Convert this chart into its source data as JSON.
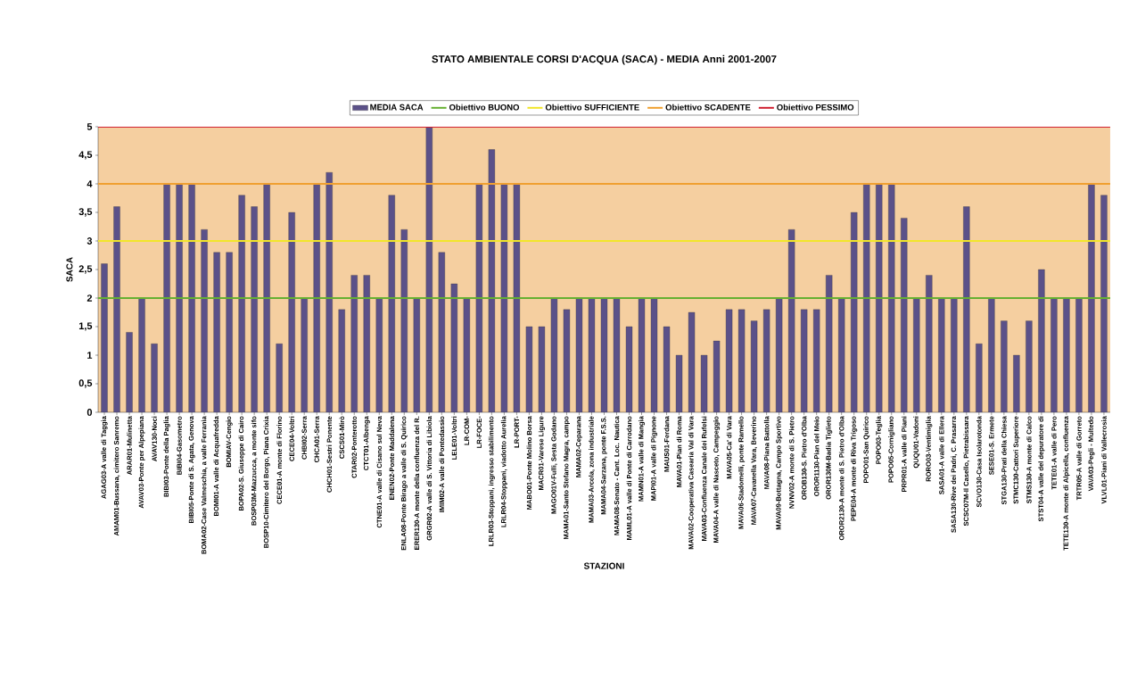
{
  "chart_data": {
    "type": "bar",
    "title": "STATO AMBIENTALE CORSI D'ACQUA (SACA) - MEDIA Anni 2001-2007",
    "xlabel": "STAZIONI",
    "ylabel": "SACA",
    "categories": [
      "AGAG03-A valle di Taggia",
      "AMAM01-Bussana, cimitero Sanremo",
      "ARAR01-Mulinetta",
      "AVAV03-Ponte per Alpepiana",
      "AVAV130-Noci",
      "BIBI03-Ponte della Paglia",
      "BIBI04-Gasometro",
      "BIBI05-Ponte di S. Agata, Genova",
      "BOMA02-Case Valmeschia, a valle Ferrania",
      "BOMI01-A valle di Acquafredda",
      "BOMIAV-Cengio",
      "BOPA02-S. Giuseppe di Cairo",
      "BOSP03M-Mazzucca, a monte sifo",
      "BOSP10-Cimitero del Borgo, Piana Crixia",
      "CECE01-A monte di Florino",
      "CECE04-Voltri",
      "CHBI02-Serra",
      "CHCA01-Serra",
      "CHCH01-Sestri Ponente",
      "CSCS01-Mirò",
      "CTAR02-Ponterotto",
      "CTCT01-Albenga",
      "CTNE01-A valle di Cisano sul Neva",
      "ENEN02-Ponte Maddalena",
      "ENLA08-Ponte Birago a valle di S. Quirico",
      "ERER130-A monte della confluenza del R.",
      "GRGR02-A valle di S. Vittoria di Libiola",
      "IMIM02-A valle di Pontedassio",
      "LELE01-Voltri",
      "LR-COM-",
      "LR-FOCE-",
      "LRLR03-Stoppani, ingresso stabilimento",
      "LRLR04-Stoppani, viadotto Aurelia",
      "LR-PORT-",
      "MABO01-Ponte Molino Borsa",
      "MACR01-Varese Ligure",
      "MAGO01V-Fulli, Sesta Godano",
      "MAMA01-Santo Stefano Magra, campo",
      "MAMA02-Ceparana",
      "MAMA03-Arcola, zona industriale",
      "MAMA04-Sarzana, ponte F.S.S.",
      "MAMA08-Senato - Cant. Loc. Nautica",
      "MAML01-A valle di Ponte di Carrodano",
      "MAMN01-A valle di Mangia",
      "MAPI01-A valle di Pignone",
      "MAUS01-Ferdana",
      "MAVA01-Pian di Roma",
      "MAVA02-Cooperativa Casearia Val di Vara",
      "MAVA03-Confluenza Canale dei Rufelsi",
      "MAVA04-A valle di Nasceto, Campeggio",
      "MAVA05-Ca' di Vara",
      "MAVA06-Stadomelli, ponte Ramello",
      "MAVA07-Cavanella Vara, Beverino",
      "MAVA08-Piana Battolla",
      "MAVA09-Bottagna, Campo Sportivo",
      "NVNV02-A monte di S. Pietro",
      "OROB130-S. Pietro d'Olba",
      "OROR1130-Pian del Meio",
      "OROR130M-Badia Tiglieto",
      "OROR2130-A monte di S. Pietro d'Olba",
      "PEPE04-A monte di Riva Trigoso",
      "POPO01-San Quirico",
      "POPO03-Teglia",
      "POPO05-Cornigliano",
      "PRPR01-A valle di Piani",
      "QUQU01-Vadoni",
      "RORO03-Ventimiglia",
      "SASA01-A valle di Ellera",
      "SASA130-Rive dei Padri, C. Prasarra",
      "SCSC07M-Il Casello, Pietrabissara",
      "SCVO130-Casa Isolarotonda",
      "SESE01-S. Ermete",
      "STGA130-Prati della Chiesa",
      "STMC130-Cattori Superiore",
      "STMS130-A monte di Calco",
      "STST04-A valle del depuratore di",
      "TETE01-A valle di Pero",
      "TETE130-A monte di Alpicella, confluenza",
      "TRTR05-A valle di Gorreto",
      "VAVA03-Pegli - Multedo",
      "VLVL01-Piani di Vallecrosia"
    ],
    "series": [
      {
        "name": "MEDIA SACA",
        "color": "#5b5189",
        "values": [
          2.6,
          3.6,
          1.4,
          2,
          1.2,
          4,
          4,
          4,
          3.2,
          2.8,
          2.8,
          3.8,
          3.6,
          4,
          1.2,
          3.5,
          2,
          4,
          4.2,
          1.8,
          2.4,
          2.4,
          2,
          3.8,
          3.2,
          2,
          5,
          2.8,
          2.25,
          2,
          4,
          4.6,
          4,
          4,
          1.5,
          1.5,
          2,
          1.8,
          2,
          2,
          2,
          2,
          1.5,
          2,
          2,
          1.5,
          1,
          1.75,
          1,
          1.25,
          1.8,
          1.8,
          1.6,
          1.8,
          2,
          3.2,
          1.8,
          1.8,
          2.4,
          2,
          3.5,
          4,
          4,
          4,
          3.4,
          2,
          2.4,
          2,
          2,
          3.6,
          1.2,
          2,
          1.6,
          1,
          1.6,
          2.5,
          2,
          2,
          2,
          4,
          3.8
        ]
      }
    ],
    "ylim": [
      0,
      5
    ],
    "yticks": [
      0,
      {
        "value": 0.5,
        "label": "0,5"
      },
      1,
      {
        "value": 1.5,
        "label": "1,5"
      },
      2,
      {
        "value": 2.5,
        "label": "2,5"
      },
      3,
      {
        "value": 3.5,
        "label": "3,5"
      },
      4,
      {
        "value": 4.5,
        "label": "4,5"
      },
      5
    ],
    "ref_lines": [
      {
        "axis": "y",
        "value": 2,
        "label": "Obiettivo BUONO",
        "color": "#66b032"
      },
      {
        "axis": "y",
        "value": 3,
        "label": "Obiettivo SUFFICIENTE",
        "color": "#f2e62a"
      },
      {
        "axis": "y",
        "value": 4,
        "label": "Obiettivo SCADENTE",
        "color": "#f0a030"
      },
      {
        "axis": "y",
        "value": 5,
        "label": "Obiettivo PESSIMO",
        "color": "#d02030"
      }
    ],
    "legend": "top"
  }
}
